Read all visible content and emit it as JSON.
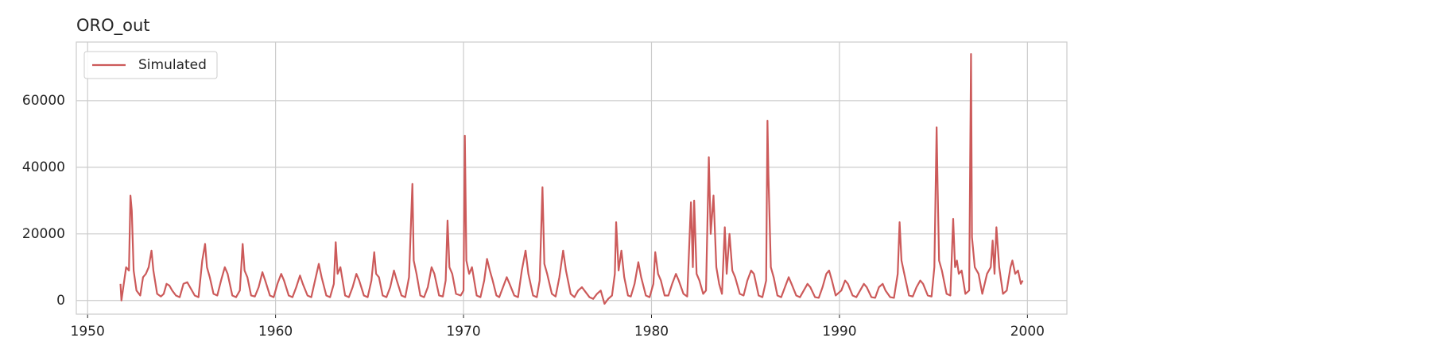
{
  "chart_data": {
    "type": "line",
    "title": "ORO_out",
    "x": [
      1951.75,
      1951.8,
      1951.9,
      1952.05,
      1952.2,
      1952.28,
      1952.35,
      1952.45,
      1952.6,
      1952.8,
      1952.95,
      1953.1,
      1953.25,
      1953.4,
      1953.5,
      1953.7,
      1953.9,
      1954.05,
      1954.2,
      1954.35,
      1954.5,
      1954.7,
      1954.9,
      1955.1,
      1955.3,
      1955.45,
      1955.7,
      1955.9,
      1956.1,
      1956.25,
      1956.35,
      1956.5,
      1956.7,
      1956.9,
      1957.1,
      1957.3,
      1957.45,
      1957.7,
      1957.9,
      1958.1,
      1958.25,
      1958.35,
      1958.5,
      1958.7,
      1958.9,
      1959.1,
      1959.3,
      1959.45,
      1959.7,
      1959.9,
      1960.1,
      1960.3,
      1960.45,
      1960.7,
      1960.9,
      1961.1,
      1961.3,
      1961.45,
      1961.7,
      1961.9,
      1962.1,
      1962.3,
      1962.45,
      1962.7,
      1962.9,
      1963.1,
      1963.2,
      1963.3,
      1963.45,
      1963.7,
      1963.9,
      1964.1,
      1964.3,
      1964.45,
      1964.7,
      1964.9,
      1965.1,
      1965.25,
      1965.35,
      1965.5,
      1965.7,
      1965.9,
      1966.1,
      1966.3,
      1966.45,
      1966.7,
      1966.9,
      1967.1,
      1967.28,
      1967.35,
      1967.5,
      1967.7,
      1967.9,
      1968.1,
      1968.3,
      1968.45,
      1968.7,
      1968.9,
      1969.05,
      1969.15,
      1969.25,
      1969.4,
      1969.6,
      1969.85,
      1970.0,
      1970.07,
      1970.15,
      1970.3,
      1970.45,
      1970.7,
      1970.9,
      1971.1,
      1971.25,
      1971.4,
      1971.55,
      1971.75,
      1971.9,
      1972.1,
      1972.3,
      1972.45,
      1972.7,
      1972.9,
      1973.1,
      1973.3,
      1973.45,
      1973.7,
      1973.9,
      1974.05,
      1974.2,
      1974.3,
      1974.45,
      1974.7,
      1974.9,
      1975.1,
      1975.3,
      1975.45,
      1975.7,
      1975.9,
      1976.1,
      1976.3,
      1976.5,
      1976.7,
      1976.9,
      1977.1,
      1977.3,
      1977.5,
      1977.7,
      1977.9,
      1978.05,
      1978.12,
      1978.25,
      1978.4,
      1978.55,
      1978.75,
      1978.9,
      1979.1,
      1979.3,
      1979.45,
      1979.7,
      1979.9,
      1980.1,
      1980.2,
      1980.35,
      1980.5,
      1980.7,
      1980.9,
      1981.1,
      1981.3,
      1981.45,
      1981.7,
      1981.9,
      1982.1,
      1982.2,
      1982.27,
      1982.4,
      1982.55,
      1982.75,
      1982.9,
      1983.05,
      1983.15,
      1983.3,
      1983.45,
      1983.6,
      1983.75,
      1983.9,
      1984.0,
      1984.15,
      1984.3,
      1984.45,
      1984.7,
      1984.9,
      1985.1,
      1985.3,
      1985.45,
      1985.7,
      1985.9,
      1986.1,
      1986.17,
      1986.22,
      1986.35,
      1986.5,
      1986.7,
      1986.9,
      1987.1,
      1987.3,
      1987.45,
      1987.7,
      1987.9,
      1988.1,
      1988.3,
      1988.45,
      1988.7,
      1988.9,
      1989.1,
      1989.3,
      1989.45,
      1989.6,
      1989.8,
      1990.1,
      1990.3,
      1990.45,
      1990.7,
      1990.9,
      1991.1,
      1991.3,
      1991.45,
      1991.7,
      1991.9,
      1992.1,
      1992.3,
      1992.45,
      1992.7,
      1992.9,
      1993.1,
      1993.2,
      1993.3,
      1993.45,
      1993.7,
      1993.9,
      1994.1,
      1994.3,
      1994.45,
      1994.7,
      1994.9,
      1995.05,
      1995.17,
      1995.22,
      1995.3,
      1995.45,
      1995.7,
      1995.9,
      1996.05,
      1996.15,
      1996.25,
      1996.35,
      1996.5,
      1996.7,
      1996.9,
      1997.0,
      1997.05,
      1997.2,
      1997.4,
      1997.6,
      1997.85,
      1998.05,
      1998.15,
      1998.25,
      1998.35,
      1998.5,
      1998.7,
      1998.9,
      1999.1,
      1999.2,
      1999.35,
      1999.5,
      1999.65,
      1999.75
    ],
    "series": [
      {
        "name": "Simulated",
        "color": "#cc5a5a",
        "values": [
          5000,
          0,
          4000,
          10000,
          9000,
          31500,
          27000,
          9000,
          3000,
          1500,
          7000,
          8000,
          10000,
          15000,
          9000,
          2000,
          1200,
          2000,
          5000,
          4500,
          3000,
          1500,
          1000,
          5000,
          5500,
          4000,
          1500,
          1000,
          12000,
          17000,
          10000,
          7000,
          2000,
          1500,
          6000,
          10000,
          8000,
          1500,
          1000,
          3000,
          17000,
          9000,
          7000,
          1500,
          1200,
          4000,
          8500,
          6000,
          1500,
          1000,
          5000,
          8000,
          6000,
          1500,
          1000,
          4000,
          7500,
          5000,
          1500,
          1000,
          6000,
          11000,
          7000,
          1500,
          1000,
          5000,
          17500,
          8000,
          10000,
          1500,
          1000,
          4000,
          8000,
          6000,
          1500,
          1000,
          6000,
          14500,
          8000,
          7000,
          1500,
          1000,
          4000,
          9000,
          6000,
          1500,
          1000,
          7000,
          35000,
          12000,
          8000,
          1500,
          1000,
          4000,
          10000,
          8000,
          1500,
          1200,
          6000,
          24000,
          10000,
          8000,
          2000,
          1500,
          3000,
          49500,
          12000,
          8000,
          10000,
          1500,
          1000,
          6000,
          12500,
          9000,
          6000,
          1500,
          1000,
          4000,
          7000,
          5000,
          1500,
          1000,
          9000,
          15000,
          8000,
          1500,
          1000,
          6000,
          34000,
          11000,
          8000,
          2000,
          1200,
          7000,
          15000,
          9000,
          2000,
          1000,
          3000,
          4000,
          2500,
          1000,
          500,
          2000,
          3000,
          -1000,
          500,
          1500,
          8000,
          23500,
          9000,
          15000,
          7000,
          1500,
          1200,
          5000,
          11500,
          7000,
          1500,
          1000,
          5000,
          14500,
          8000,
          6000,
          1500,
          1500,
          5000,
          8000,
          6000,
          2000,
          1200,
          29500,
          10000,
          30000,
          8000,
          6000,
          2000,
          3000,
          43000,
          20000,
          31500,
          10000,
          5000,
          2000,
          22000,
          8000,
          20000,
          9000,
          7000,
          2000,
          1500,
          6000,
          9000,
          8000,
          1500,
          1000,
          6000,
          54000,
          38000,
          10000,
          7000,
          1500,
          1000,
          4000,
          7000,
          5000,
          1500,
          1000,
          3000,
          5000,
          4000,
          1000,
          800,
          4000,
          8000,
          9000,
          6000,
          1500,
          3000,
          6000,
          5000,
          1500,
          1000,
          3000,
          5000,
          4000,
          1000,
          800,
          4000,
          5000,
          3000,
          1000,
          800,
          8000,
          23500,
          12000,
          8000,
          1500,
          1200,
          4000,
          6000,
          5000,
          1500,
          1200,
          10000,
          52000,
          35000,
          12000,
          9000,
          2000,
          1500,
          24500,
          10000,
          12000,
          8000,
          9000,
          2000,
          3000,
          74000,
          19000,
          10000,
          8000,
          2000,
          8000,
          10000,
          18000,
          8000,
          22000,
          10000,
          2000,
          3000,
          10000,
          12000,
          8000,
          9000,
          5000,
          6000
        ]
      }
    ],
    "xlim": [
      1949.4,
      2002.1
    ],
    "ylim": [
      -4100,
      77600
    ],
    "xticks": [
      1950,
      1960,
      1970,
      1980,
      1990,
      2000
    ],
    "yticks": [
      0,
      20000,
      40000,
      60000
    ],
    "grid": true,
    "legend": "upper left"
  }
}
